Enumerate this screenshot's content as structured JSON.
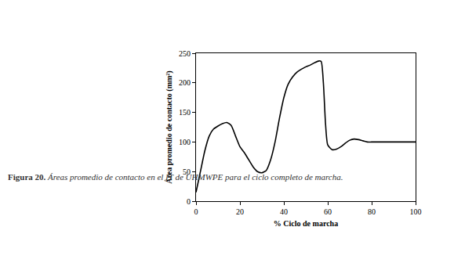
{
  "chart_data": {
    "type": "line",
    "title": "Figura 20. Áreas promedio de contacto en el IT de UHMWPE para el ciclo completo de marcha.",
    "xlabel": "% Ciclo de marcha",
    "ylabel": "Área promedio de contacto (mm²)",
    "x": [
      0,
      2,
      4,
      6,
      8,
      10,
      12,
      14,
      16,
      18,
      20,
      22,
      24,
      26,
      28,
      30,
      32,
      34,
      36,
      38,
      40,
      42,
      44,
      46,
      48,
      50,
      52,
      54,
      56,
      57,
      58,
      59,
      60,
      62,
      64,
      66,
      68,
      70,
      72,
      74,
      76,
      78,
      80,
      85,
      90,
      95,
      100
    ],
    "values": [
      15,
      50,
      85,
      110,
      122,
      127,
      131,
      133,
      128,
      110,
      92,
      82,
      70,
      58,
      50,
      48,
      52,
      70,
      100,
      140,
      175,
      198,
      210,
      218,
      223,
      227,
      230,
      234,
      237,
      236,
      200,
      130,
      95,
      87,
      88,
      92,
      98,
      103,
      105,
      104,
      102,
      100,
      100,
      100,
      100,
      100,
      100
    ],
    "color": "#000000",
    "line_style": "solid",
    "xlim": [
      0,
      100
    ],
    "xticks": [
      0,
      20,
      40,
      60,
      80,
      100
    ],
    "ylim": [
      0,
      250
    ],
    "yticks": [
      0,
      50,
      100,
      150,
      200,
      250
    ],
    "grid": false
  }
}
